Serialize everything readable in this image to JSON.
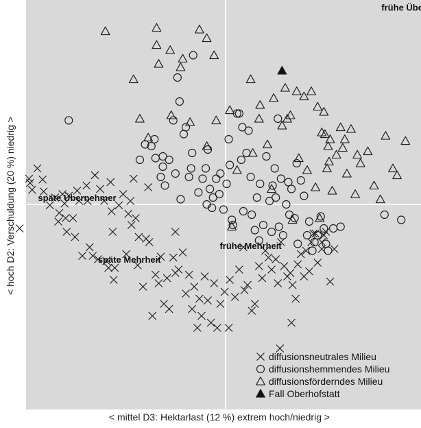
{
  "chart_data": {
    "type": "scatter",
    "title": "",
    "xlabel": "< mittel   D3: Hektarlast (12 %)   extrem hoch/niedrig >",
    "ylabel": "< hoch   D2: Verschuldung (20 %)   niedrig >",
    "xlim": [
      -1,
      1
    ],
    "ylim": [
      -1,
      1
    ],
    "grid": false,
    "axis_lines": {
      "x": 0,
      "y": 0
    },
    "background": "#d9d9d9",
    "legend_placement": "bottom-right",
    "series": [
      {
        "name": "diffusionsneutrales Milieu",
        "marker": "x",
        "points": [
          [
            -0.985,
            -0.14
          ],
          [
            -0.94,
            0.15
          ],
          [
            -0.935,
            0.125
          ],
          [
            -0.925,
            0.085
          ],
          [
            -0.9,
            0.21
          ],
          [
            -0.875,
            0.145
          ],
          [
            -0.87,
            0.075
          ],
          [
            -0.84,
            -0.005
          ],
          [
            -0.815,
            0.04
          ],
          [
            -0.8,
            -0.1
          ],
          [
            -0.795,
            -0.05
          ],
          [
            -0.78,
            0.06
          ],
          [
            -0.77,
            0.005
          ],
          [
            -0.765,
            -0.08
          ],
          [
            -0.76,
            -0.16
          ],
          [
            -0.75,
            0.05
          ],
          [
            -0.73,
            -0.08
          ],
          [
            -0.72,
            -0.19
          ],
          [
            -0.71,
            0.08
          ],
          [
            -0.7,
            0.02
          ],
          [
            -0.685,
            -0.3
          ],
          [
            -0.665,
            0.11
          ],
          [
            -0.66,
            0.02
          ],
          [
            -0.65,
            -0.25
          ],
          [
            -0.635,
            -0.3
          ],
          [
            -0.625,
            0.17
          ],
          [
            -0.61,
            -0.32
          ],
          [
            -0.6,
            0.09
          ],
          [
            -0.58,
            0.02
          ],
          [
            -0.57,
            -0.33
          ],
          [
            -0.56,
            -0.37
          ],
          [
            -0.55,
            0.13
          ],
          [
            -0.545,
            -0.04
          ],
          [
            -0.54,
            -0.16
          ],
          [
            -0.535,
            -0.44
          ],
          [
            -0.53,
            -0.37
          ],
          [
            -0.51,
            -0.005
          ],
          [
            -0.49,
            0.06
          ],
          [
            -0.475,
            -0.29
          ],
          [
            -0.465,
            -0.055
          ],
          [
            -0.455,
            0.02
          ],
          [
            -0.45,
            -0.12
          ],
          [
            -0.44,
            0.15
          ],
          [
            -0.43,
            -0.08
          ],
          [
            -0.42,
            -0.355
          ],
          [
            -0.415,
            -0.19
          ],
          [
            -0.395,
            -0.48
          ],
          [
            -0.38,
            -0.2
          ],
          [
            -0.37,
            0.1
          ],
          [
            -0.365,
            -0.22
          ],
          [
            -0.35,
            -0.65
          ],
          [
            -0.335,
            -0.41
          ],
          [
            -0.32,
            -0.46
          ],
          [
            -0.31,
            -0.305
          ],
          [
            -0.295,
            -0.58
          ],
          [
            -0.28,
            -0.43
          ],
          [
            -0.27,
            -0.61
          ],
          [
            -0.25,
            -0.31
          ],
          [
            -0.24,
            -0.4
          ],
          [
            -0.225,
            -0.38
          ],
          [
            -0.205,
            -0.28
          ],
          [
            -0.19,
            -0.52
          ],
          [
            -0.175,
            -0.41
          ],
          [
            -0.16,
            -0.61
          ],
          [
            -0.15,
            -0.48
          ],
          [
            -0.135,
            -0.72
          ],
          [
            -0.115,
            -0.65
          ],
          [
            -0.1,
            -0.42
          ],
          [
            -0.085,
            -0.56
          ],
          [
            -0.07,
            -0.69
          ],
          [
            -0.055,
            -0.46
          ],
          [
            -0.04,
            -0.72
          ],
          [
            -0.025,
            -0.58
          ],
          [
            -0.005,
            -0.51
          ],
          [
            0.015,
            -0.72
          ],
          [
            0.02,
            -0.44
          ],
          [
            0.045,
            -0.54
          ],
          [
            0.065,
            -0.38
          ],
          [
            0.085,
            -0.25
          ],
          [
            0.09,
            -0.5
          ],
          [
            0.105,
            -0.47
          ],
          [
            0.125,
            -0.62
          ],
          [
            0.14,
            -0.58
          ],
          [
            0.16,
            -0.36
          ],
          [
            0.175,
            -0.43
          ],
          [
            0.19,
            -0.27
          ],
          [
            0.205,
            -0.31
          ],
          [
            0.22,
            -0.38
          ],
          [
            0.24,
            -0.32
          ],
          [
            0.25,
            -0.46
          ],
          [
            0.265,
            -0.22
          ],
          [
            0.28,
            -0.36
          ],
          [
            0.295,
            -0.42
          ],
          [
            0.31,
            -0.4
          ],
          [
            0.315,
            -0.69
          ],
          [
            0.32,
            -0.47
          ],
          [
            0.335,
            -0.55
          ],
          [
            0.345,
            -0.35
          ],
          [
            0.36,
            -0.29
          ],
          [
            0.375,
            -0.42
          ],
          [
            0.385,
            -0.27
          ],
          [
            0.4,
            -0.39
          ],
          [
            0.41,
            -0.22
          ],
          [
            0.42,
            -0.17
          ],
          [
            0.43,
            -0.17
          ],
          [
            0.44,
            -0.34
          ],
          [
            0.46,
            -0.26
          ],
          [
            0.47,
            -0.18
          ],
          [
            0.48,
            -0.16
          ],
          [
            0.5,
            -0.45
          ],
          [
            0.52,
            -0.26
          ],
          [
            0.26,
            -0.84
          ],
          [
            -0.125,
            -0.55
          ],
          [
            -0.24,
            -0.16
          ],
          [
            0.46,
            -0.22
          ]
        ]
      },
      {
        "name": "diffusionshemmendes Milieu",
        "marker": "circle",
        "points": [
          [
            -0.75,
            0.49
          ],
          [
            -0.41,
            0.26
          ],
          [
            -0.385,
            0.35
          ],
          [
            -0.355,
            0.34
          ],
          [
            -0.34,
            0.38
          ],
          [
            -0.335,
            0.27
          ],
          [
            -0.3,
            0.28
          ],
          [
            -0.31,
            0.16
          ],
          [
            -0.29,
            0.11
          ],
          [
            -0.27,
            0.26
          ],
          [
            -0.25,
            0.49
          ],
          [
            -0.24,
            0.18
          ],
          [
            -0.23,
            0.74
          ],
          [
            -0.22,
            0.6
          ],
          [
            -0.215,
            0.03
          ],
          [
            -0.2,
            0.41
          ],
          [
            -0.19,
            0.45
          ],
          [
            -0.175,
            0.16
          ],
          [
            -0.165,
            0.21
          ],
          [
            -0.16,
            0.3
          ],
          [
            -0.155,
            0.87
          ],
          [
            -0.13,
            0.07
          ],
          [
            -0.11,
            0.15
          ],
          [
            -0.095,
            0.21
          ],
          [
            -0.09,
            0.0
          ],
          [
            -0.085,
            0.32
          ],
          [
            -0.075,
            0.09
          ],
          [
            -0.065,
            -0.02
          ],
          [
            -0.045,
            0.15
          ],
          [
            -0.03,
            0.06
          ],
          [
            -0.025,
            0.18
          ],
          [
            -0.01,
            -0.03
          ],
          [
            0.005,
            0.12
          ],
          [
            0.015,
            0.38
          ],
          [
            0.03,
            -0.09
          ],
          [
            0.035,
            -0.12
          ],
          [
            0.055,
            0.53
          ],
          [
            0.065,
            0.53
          ],
          [
            0.075,
            0.26
          ],
          [
            0.085,
            -0.04
          ],
          [
            0.1,
            0.3
          ],
          [
            0.11,
            0.43
          ],
          [
            0.12,
            0.16
          ],
          [
            0.125,
            -0.06
          ],
          [
            0.14,
            -0.15
          ],
          [
            0.15,
            0.04
          ],
          [
            0.16,
            -0.21
          ],
          [
            0.165,
            0.12
          ],
          [
            0.18,
            -0.12
          ],
          [
            0.195,
            0.28
          ],
          [
            0.21,
            0.02
          ],
          [
            0.22,
            -0.16
          ],
          [
            0.225,
            0.11
          ],
          [
            0.235,
            0.21
          ],
          [
            0.24,
            0.04
          ],
          [
            0.25,
            0.5
          ],
          [
            0.255,
            -0.13
          ],
          [
            0.265,
            0.15
          ],
          [
            0.275,
            -0.18
          ],
          [
            0.29,
            0.0
          ],
          [
            0.3,
            0.13
          ],
          [
            0.305,
            -0.06
          ],
          [
            0.315,
            0.09
          ],
          [
            0.33,
            -0.08
          ],
          [
            0.34,
            0.24
          ],
          [
            0.345,
            -0.23
          ],
          [
            0.36,
            0.14
          ],
          [
            0.375,
            0.05
          ],
          [
            0.39,
            -0.18
          ],
          [
            0.4,
            -0.1
          ],
          [
            0.415,
            -0.27
          ],
          [
            0.425,
            -0.22
          ],
          [
            0.44,
            -0.18
          ],
          [
            0.455,
            -0.07
          ],
          [
            0.47,
            -0.14
          ],
          [
            0.48,
            -0.23
          ],
          [
            0.49,
            -0.27
          ],
          [
            0.515,
            -0.14
          ],
          [
            0.55,
            -0.13
          ],
          [
            0.76,
            -0.06
          ],
          [
            0.84,
            -0.09
          ],
          [
            0.08,
            0.45
          ],
          [
            -0.3,
            0.22
          ],
          [
            -0.06,
            0.04
          ],
          [
            0.02,
            0.23
          ]
        ]
      },
      {
        "name": "diffusionsförderndes Milieu",
        "marker": "triangle-open",
        "points": [
          [
            -0.575,
            1.01
          ],
          [
            -0.33,
            1.03
          ],
          [
            -0.33,
            0.93
          ],
          [
            -0.32,
            0.82
          ],
          [
            -0.265,
            0.9
          ],
          [
            -0.215,
            0.8
          ],
          [
            -0.205,
            0.85
          ],
          [
            -0.125,
            1.02
          ],
          [
            -0.09,
            0.97
          ],
          [
            -0.055,
            0.87
          ],
          [
            0.12,
            0.73
          ],
          [
            0.165,
            0.58
          ],
          [
            0.23,
            0.62
          ],
          [
            0.285,
            0.68
          ],
          [
            0.295,
            0.5
          ],
          [
            0.31,
            0.52
          ],
          [
            0.34,
            0.66
          ],
          [
            0.375,
            0.63
          ],
          [
            0.41,
            0.66
          ],
          [
            0.44,
            0.57
          ],
          [
            0.47,
            0.54
          ],
          [
            0.475,
            0.41
          ],
          [
            0.485,
            0.21
          ],
          [
            0.49,
            0.34
          ],
          [
            0.495,
            0.25
          ],
          [
            0.51,
            0.08
          ],
          [
            0.53,
            0.29
          ],
          [
            0.55,
            0.45
          ],
          [
            0.56,
            0.33
          ],
          [
            0.57,
            0.38
          ],
          [
            0.58,
            0.18
          ],
          [
            0.6,
            0.44
          ],
          [
            0.62,
            0.06
          ],
          [
            0.63,
            0.29
          ],
          [
            0.645,
            0.24
          ],
          [
            0.68,
            0.31
          ],
          [
            0.71,
            0.11
          ],
          [
            0.74,
            0.03
          ],
          [
            0.765,
            0.4
          ],
          [
            0.8,
            0.21
          ],
          [
            0.82,
            0.17
          ],
          [
            0.86,
            0.37
          ],
          [
            -0.44,
            0.73
          ],
          [
            -0.41,
            0.5
          ],
          [
            -0.37,
            0.39
          ],
          [
            -0.26,
            0.52
          ],
          [
            -0.17,
            0.48
          ],
          [
            -0.09,
            0.34
          ],
          [
            -0.045,
            0.49
          ],
          [
            0.02,
            0.55
          ],
          [
            0.055,
            0.2
          ],
          [
            0.16,
            0.5
          ],
          [
            0.2,
            0.35
          ],
          [
            0.27,
            0.46
          ],
          [
            0.35,
            0.27
          ],
          [
            0.39,
            0.2
          ],
          [
            0.43,
            0.1
          ],
          [
            0.45,
            -0.08
          ],
          [
            0.46,
            0.42
          ],
          [
            0.5,
            0.38
          ],
          [
            0.32,
            -0.09
          ],
          [
            0.03,
            -0.13
          ],
          [
            0.13,
            0.3
          ],
          [
            0.22,
            0.09
          ]
        ]
      },
      {
        "name": "Fall Oberhofstatt",
        "marker": "triangle-filled",
        "points": [
          [
            0.27,
            0.78
          ]
        ]
      }
    ],
    "annotations": [
      {
        "text": "frühe Übernehmer",
        "x": 0.93,
        "y": 1.13
      },
      {
        "text": "späte Übernehmer",
        "x": -0.71,
        "y": 0.02
      },
      {
        "text": "frühe Mehrheit",
        "x": 0.12,
        "y": -0.26
      },
      {
        "text": "späte Mehrheit",
        "x": -0.46,
        "y": -0.34
      }
    ]
  }
}
